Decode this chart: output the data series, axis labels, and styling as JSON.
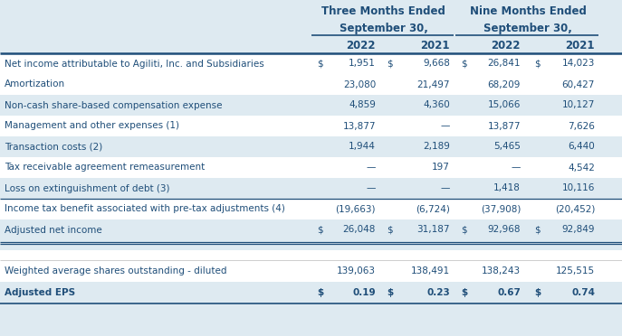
{
  "col_years": [
    "2022",
    "2021",
    "2022",
    "2021"
  ],
  "rows": [
    {
      "label": "Net income attributable to Agiliti, Inc. and Subsidiaries",
      "vals": [
        "$",
        "1,951",
        "$",
        "9,668",
        "$",
        "26,841",
        "$",
        "14,023"
      ],
      "highlight": false,
      "bold": false
    },
    {
      "label": "Amortization",
      "vals": [
        "",
        "23,080",
        "",
        "21,497",
        "",
        "68,209",
        "",
        "60,427"
      ],
      "highlight": false,
      "bold": false
    },
    {
      "label": "Non-cash share-based compensation expense",
      "vals": [
        "",
        "4,859",
        "",
        "4,360",
        "",
        "15,066",
        "",
        "10,127"
      ],
      "highlight": true,
      "bold": false
    },
    {
      "label": "Management and other expenses (1)",
      "vals": [
        "",
        "13,877",
        "",
        "—",
        "",
        "13,877",
        "",
        "7,626"
      ],
      "highlight": false,
      "bold": false
    },
    {
      "label": "Transaction costs (2)",
      "vals": [
        "",
        "1,944",
        "",
        "2,189",
        "",
        "5,465",
        "",
        "6,440"
      ],
      "highlight": true,
      "bold": false
    },
    {
      "label": "Tax receivable agreement remeasurement",
      "vals": [
        "",
        "—",
        "",
        "197",
        "",
        "—",
        "",
        "4,542"
      ],
      "highlight": false,
      "bold": false
    },
    {
      "label": "Loss on extinguishment of debt (3)",
      "vals": [
        "",
        "—",
        "",
        "—",
        "",
        "1,418",
        "",
        "10,116"
      ],
      "highlight": true,
      "bold": false
    },
    {
      "label": "Income tax benefit associated with pre-tax adjustments (4)",
      "vals": [
        "",
        "(19,663)",
        "",
        "(6,724)",
        "",
        "(37,908)",
        "",
        "(20,452)"
      ],
      "highlight": false,
      "bold": false
    },
    {
      "label": "Adjusted net income",
      "vals": [
        "$",
        "26,048",
        "$",
        "31,187",
        "$",
        "92,968",
        "$",
        "92,849"
      ],
      "highlight": true,
      "bold": false,
      "double_underline": true
    }
  ],
  "bottom_rows": [
    {
      "label": "Weighted average shares outstanding - diluted",
      "vals": [
        "",
        "139,063",
        "",
        "138,491",
        "",
        "138,243",
        "",
        "125,515"
      ],
      "highlight": false,
      "bold": false
    },
    {
      "label": "Adjusted EPS",
      "vals": [
        "$",
        "0.19",
        "$",
        "0.23",
        "$",
        "0.67",
        "$",
        "0.74"
      ],
      "highlight": true,
      "bold": true
    }
  ],
  "bg_light": "#deeaf1",
  "bg_white": "#ffffff",
  "text_color": "#1f4e79",
  "font_size": 7.5,
  "header_font_size": 8.5
}
